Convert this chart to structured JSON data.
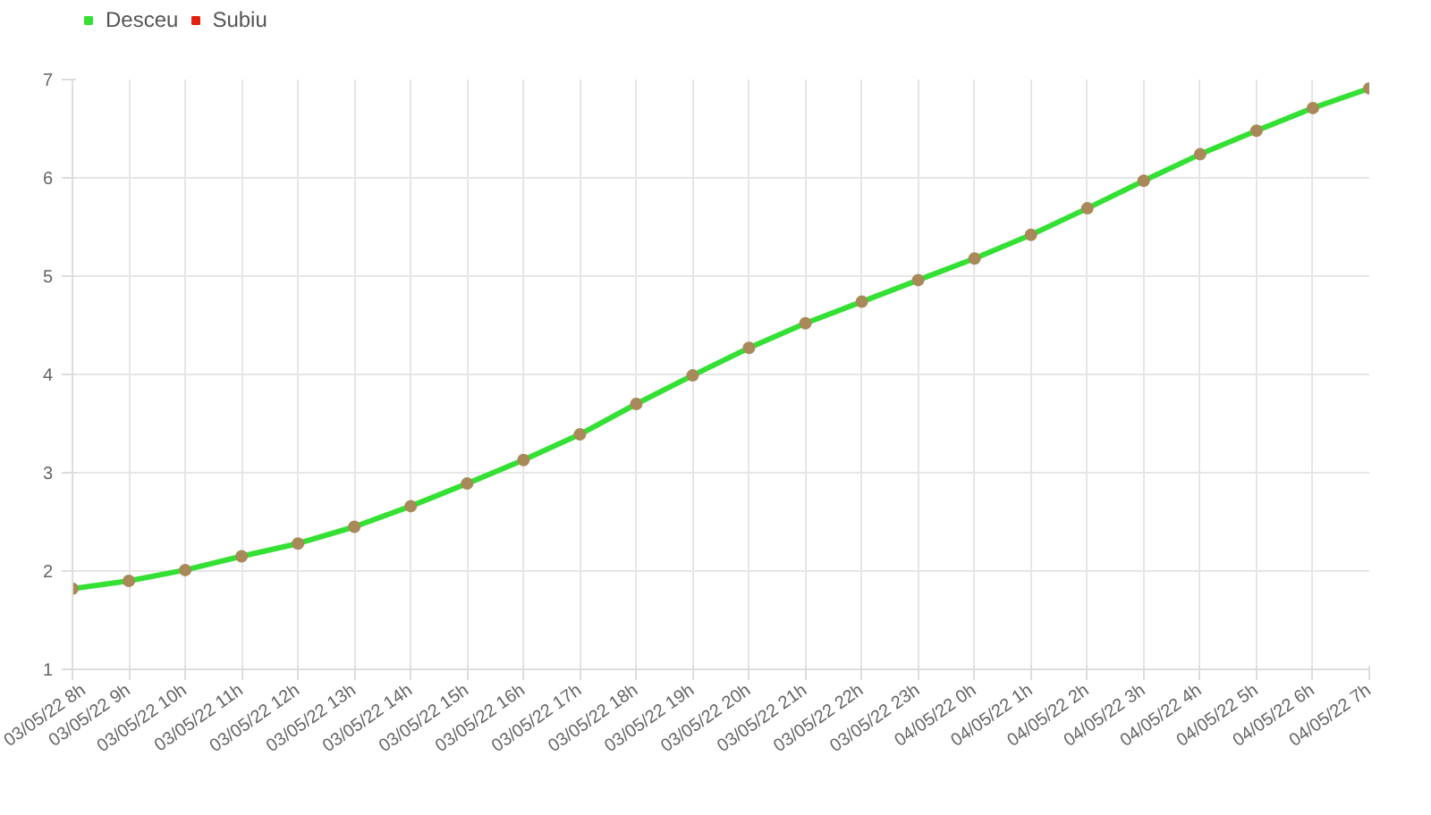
{
  "chart_data": {
    "type": "line",
    "categories": [
      "03/05/22 8h",
      "03/05/22 9h",
      "03/05/22 10h",
      "03/05/22 11h",
      "03/05/22 12h",
      "03/05/22 13h",
      "03/05/22 14h",
      "03/05/22 15h",
      "03/05/22 16h",
      "03/05/22 17h",
      "03/05/22 18h",
      "03/05/22 19h",
      "03/05/22 20h",
      "03/05/22 21h",
      "03/05/22 22h",
      "03/05/22 23h",
      "04/05/22 0h",
      "04/05/22 1h",
      "04/05/22 2h",
      "04/05/22 3h",
      "04/05/22 4h",
      "04/05/22 5h",
      "04/05/22 6h",
      "04/05/22 7h"
    ],
    "series": [
      {
        "name": "Desceu",
        "color": "#33e033",
        "values": [
          1.82,
          1.9,
          2.01,
          2.15,
          2.28,
          2.45,
          2.66,
          2.89,
          3.13,
          3.39,
          3.7,
          3.99,
          4.27,
          4.52,
          4.74,
          4.96,
          5.18,
          5.42,
          5.69,
          5.97,
          6.24,
          6.48,
          6.71,
          6.91
        ]
      },
      {
        "name": "Subiu",
        "color": "#e02010",
        "values": [
          null,
          null,
          null,
          null,
          null,
          null,
          null,
          null,
          null,
          null,
          null,
          null,
          null,
          null,
          null,
          null,
          null,
          null,
          null,
          null,
          null,
          null,
          null,
          null
        ]
      }
    ],
    "ylim": [
      1,
      7
    ],
    "yticks": [
      1,
      2,
      3,
      4,
      5,
      6,
      7
    ],
    "grid": true,
    "legend": "top left",
    "marker": "circle",
    "line_style": "solid"
  }
}
